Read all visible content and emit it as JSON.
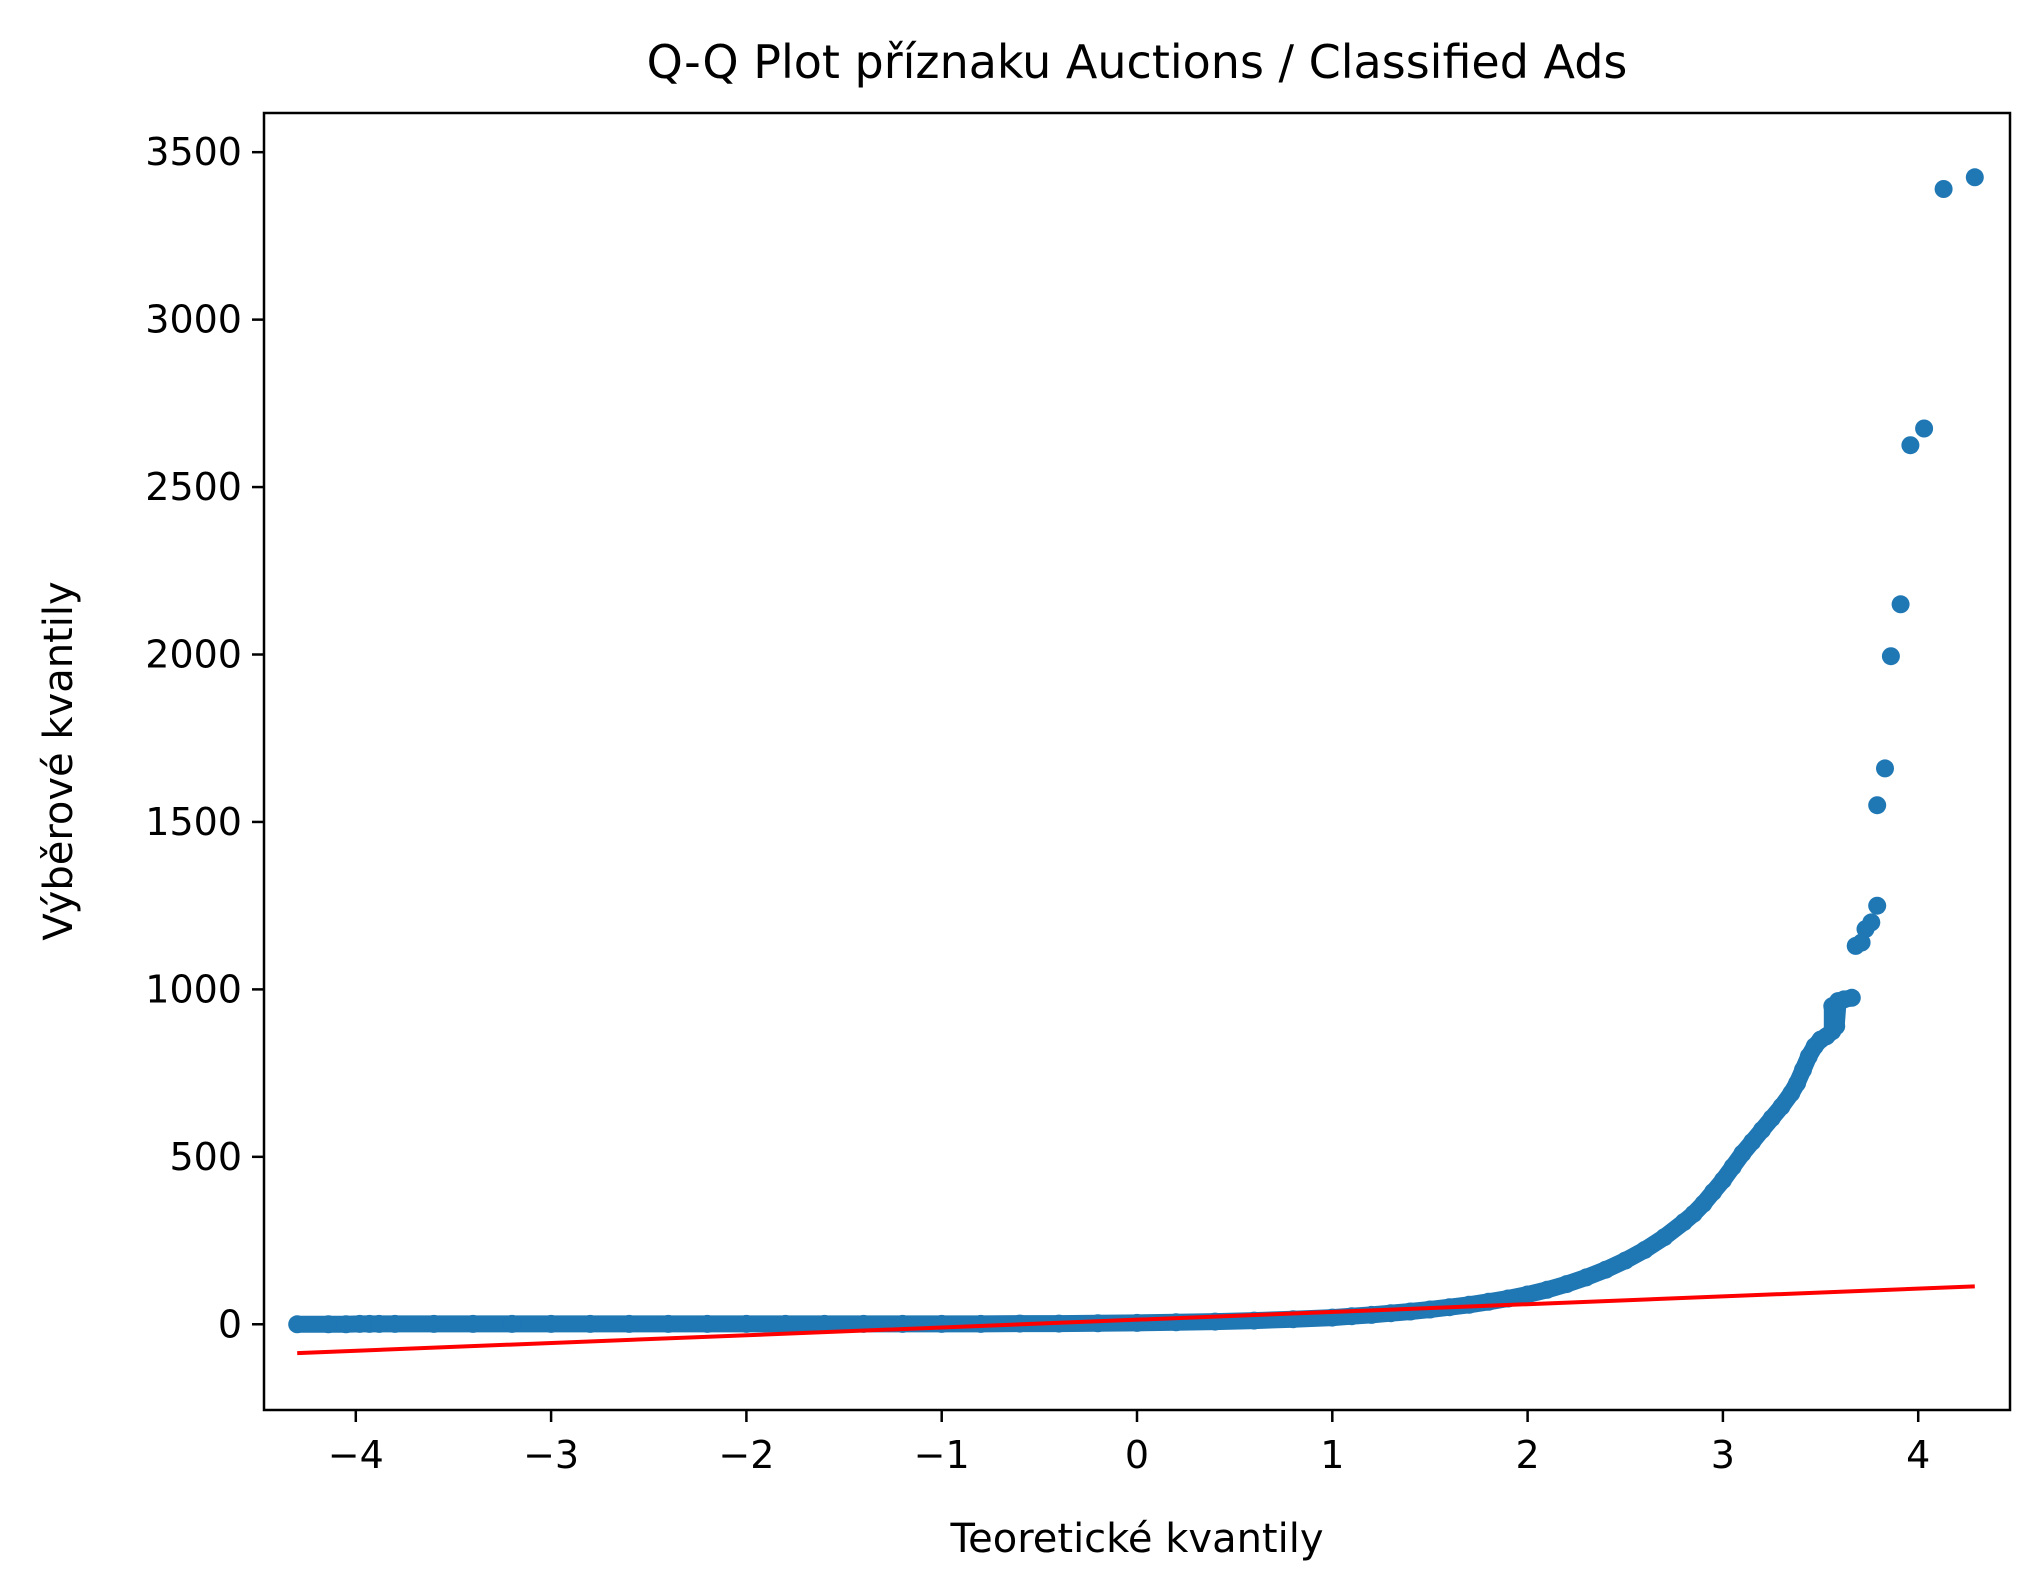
{
  "chart_data": {
    "type": "scatter",
    "title": "Q-Q Plot příznaku Auctions / Classified Ads",
    "xlabel": "Teoretické kvantily",
    "ylabel": "Výběrové kvantily",
    "xlim": [
      -4.47,
      4.47
    ],
    "ylim": [
      -256,
      3617
    ],
    "xticks": [
      -4,
      -3,
      -2,
      -1,
      0,
      1,
      2,
      3,
      4
    ],
    "xtick_labels": [
      "−4",
      "−3",
      "−2",
      "−1",
      "0",
      "1",
      "2",
      "3",
      "4"
    ],
    "yticks": [
      0,
      500,
      1000,
      1500,
      2000,
      2500,
      3000,
      3500
    ],
    "ytick_labels": [
      "0",
      "500",
      "1000",
      "1500",
      "2000",
      "2500",
      "3000",
      "3500"
    ],
    "grid": false,
    "series": [
      {
        "kind": "points",
        "color": "#1f77b4",
        "points": [
          [
            -4.3,
            0
          ],
          [
            -4.14,
            0
          ],
          [
            -4.05,
            0
          ],
          [
            -3.98,
            1
          ],
          [
            -3.93,
            1
          ],
          [
            -3.88,
            1
          ],
          [
            -3.8,
            1
          ],
          [
            -3.6,
            1
          ],
          [
            -3.4,
            1
          ],
          [
            -3.2,
            1
          ],
          [
            -3.0,
            1
          ],
          [
            -2.8,
            1
          ],
          [
            -2.6,
            1
          ],
          [
            -2.4,
            1
          ],
          [
            -2.2,
            1
          ],
          [
            -2.0,
            1
          ],
          [
            -1.8,
            1
          ],
          [
            -1.6,
            1
          ],
          [
            -1.4,
            1
          ],
          [
            -1.2,
            1
          ],
          [
            -1.0,
            1
          ],
          [
            -0.8,
            1
          ],
          [
            -0.6,
            2
          ],
          [
            -0.4,
            2
          ],
          [
            -0.2,
            3
          ],
          [
            0.0,
            4
          ],
          [
            0.2,
            6
          ],
          [
            0.4,
            8
          ],
          [
            0.6,
            11
          ],
          [
            0.8,
            15
          ],
          [
            1.0,
            20
          ],
          [
            1.1,
            24
          ],
          [
            1.2,
            28
          ],
          [
            1.3,
            33
          ],
          [
            1.4,
            38
          ],
          [
            1.5,
            44
          ],
          [
            1.6,
            51
          ],
          [
            1.7,
            58
          ],
          [
            1.8,
            67
          ],
          [
            1.9,
            77
          ],
          [
            2.0,
            89
          ],
          [
            2.1,
            103
          ],
          [
            2.2,
            120
          ],
          [
            2.3,
            140
          ],
          [
            2.4,
            163
          ],
          [
            2.5,
            190
          ],
          [
            2.6,
            222
          ],
          [
            2.7,
            260
          ],
          [
            2.8,
            305
          ],
          [
            2.85,
            330
          ],
          [
            2.9,
            360
          ],
          [
            2.95,
            395
          ],
          [
            3.0,
            430
          ],
          [
            3.05,
            470
          ],
          [
            3.1,
            510
          ],
          [
            3.15,
            545
          ],
          [
            3.2,
            580
          ],
          [
            3.25,
            615
          ],
          [
            3.3,
            650
          ],
          [
            3.35,
            690
          ],
          [
            3.38,
            720
          ],
          [
            3.41,
            760
          ],
          [
            3.44,
            800
          ],
          [
            3.47,
            830
          ],
          [
            3.5,
            850
          ],
          [
            3.53,
            860
          ],
          [
            3.56,
            875
          ],
          [
            3.58,
            890
          ],
          [
            3.56,
            950
          ],
          [
            3.59,
            965
          ],
          [
            3.62,
            970
          ],
          [
            3.66,
            975
          ],
          [
            3.68,
            1130
          ],
          [
            3.71,
            1140
          ],
          [
            3.73,
            1180
          ],
          [
            3.76,
            1200
          ],
          [
            3.79,
            1250
          ],
          [
            3.79,
            1550
          ],
          [
            3.83,
            1660
          ],
          [
            3.86,
            1995
          ],
          [
            3.91,
            2150
          ],
          [
            3.96,
            2625
          ],
          [
            4.03,
            2675
          ],
          [
            4.13,
            3390
          ],
          [
            4.29,
            3425
          ]
        ]
      },
      {
        "kind": "line",
        "color": "#ff0000",
        "points": [
          [
            -4.3,
            -86
          ],
          [
            4.29,
            113
          ]
        ]
      }
    ]
  }
}
